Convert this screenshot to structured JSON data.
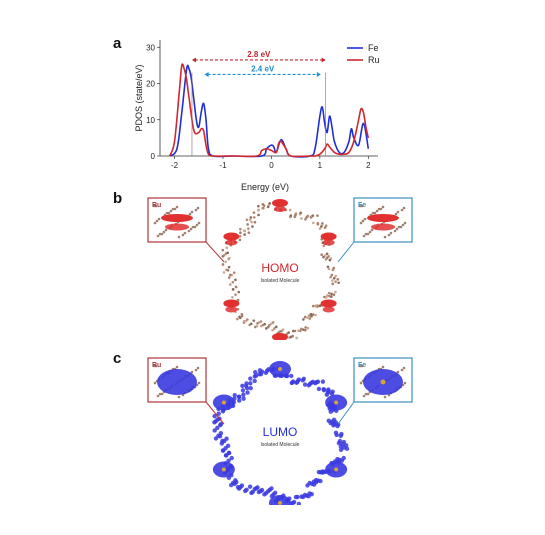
{
  "panels": {
    "a": {
      "label": "a"
    },
    "b": {
      "label": "b",
      "title": "HOMO",
      "subtitle": "Isolated Molecule",
      "inset_left": "Ru",
      "inset_right": "Fe"
    },
    "c": {
      "label": "c",
      "title": "LUMO",
      "subtitle": "Isolated Molecule",
      "inset_left": "Ru",
      "inset_right": "Fe"
    }
  },
  "colors": {
    "fe": "#1f2fd6",
    "ru": "#d0282e",
    "gap_ru": "#c1272d",
    "gap_fe": "#1a8ed0",
    "homo_lobe": "#e03030",
    "lumo_lobe": "#3a3ae0",
    "inset_ru_border": "#b0353a",
    "inset_fe_border": "#3a8fc4"
  },
  "chart_data": {
    "type": "line",
    "xlabel": "Energy (eV)",
    "ylabel": "PDOS (state/eV)",
    "xlim": [
      -2.3,
      2.2
    ],
    "ylim": [
      0,
      32
    ],
    "xticks": [
      "-2",
      "-1",
      "0",
      "1",
      "2"
    ],
    "yticks": [
      "0",
      "10",
      "20",
      "30"
    ],
    "legend_position": "top-right",
    "series": [
      {
        "name": "Fe",
        "x": [
          -2.1,
          -1.95,
          -1.85,
          -1.75,
          -1.7,
          -1.65,
          -1.55,
          -1.5,
          -1.45,
          -1.4,
          -1.35,
          -1.3,
          -1.2,
          -0.8,
          -0.2,
          -0.1,
          0.0,
          0.05,
          0.1,
          0.2,
          0.3,
          0.4,
          0.8,
          0.9,
          1.0,
          1.05,
          1.1,
          1.15,
          1.2,
          1.25,
          1.3,
          1.4,
          1.5,
          1.6,
          1.65,
          1.7,
          1.8,
          1.9,
          2.0
        ],
        "values": [
          0,
          2,
          12,
          24,
          24,
          21,
          10,
          8,
          12,
          14.5,
          10,
          2,
          0,
          0,
          0,
          2,
          3,
          2.5,
          1,
          4.5,
          2,
          0,
          0,
          2,
          11,
          13.5,
          9,
          6.5,
          11,
          8,
          4,
          1,
          1,
          4,
          7.5,
          5,
          3,
          9,
          2
        ]
      },
      {
        "name": "Ru",
        "x": [
          -2.1,
          -2.0,
          -1.9,
          -1.85,
          -1.8,
          -1.75,
          -1.7,
          -1.6,
          -1.5,
          -1.45,
          -1.4,
          -1.35,
          -1.3,
          -1.2,
          -0.8,
          -0.3,
          -0.2,
          -0.1,
          0.0,
          0.1,
          0.15,
          0.2,
          0.3,
          0.4,
          0.8,
          0.9,
          1.0,
          1.1,
          1.15,
          1.2,
          1.3,
          1.4,
          1.5,
          1.6,
          1.7,
          1.8,
          1.85,
          1.9,
          1.95,
          2.0
        ],
        "values": [
          0,
          4,
          18,
          25,
          24,
          21,
          16,
          7,
          6.5,
          7.5,
          7,
          3,
          0.5,
          0,
          0,
          0,
          1.5,
          2,
          1.5,
          1,
          3.5,
          4,
          2,
          0,
          0,
          0,
          0.5,
          2,
          3.3,
          2.5,
          1,
          0.5,
          0.5,
          1,
          4,
          10,
          13,
          12,
          8,
          5
        ]
      }
    ],
    "annotations": [
      {
        "text": "2.8 eV",
        "x1": -1.64,
        "x2": 1.12
      },
      {
        "text": "2.4 eV",
        "x1": -1.38,
        "x2": 1.02
      }
    ]
  }
}
